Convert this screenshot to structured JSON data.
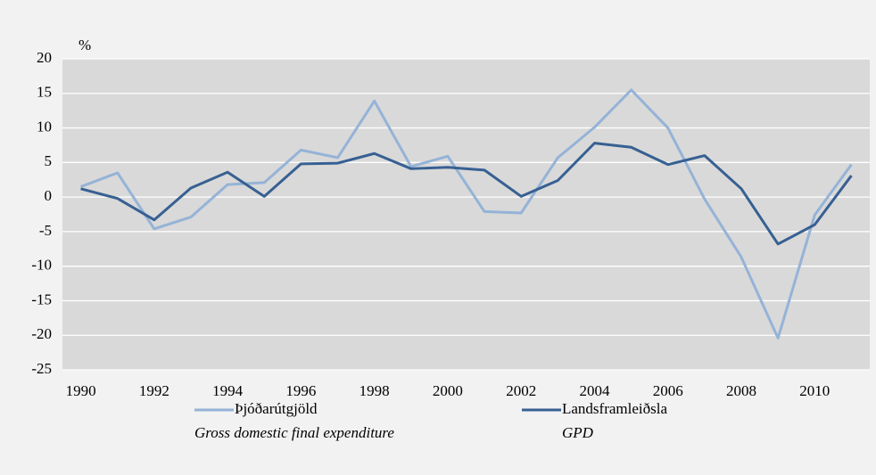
{
  "chart_data": {
    "type": "line",
    "y_unit": "%",
    "categories": [
      "1990",
      null,
      "1992",
      null,
      "1994",
      null,
      "1996",
      null,
      "1998",
      null,
      "2000",
      null,
      "2002",
      null,
      "2004",
      null,
      "2006",
      null,
      "2008",
      null,
      "2010",
      null
    ],
    "series": [
      {
        "name": "Þjóðarútgjöld",
        "description": "Gross domestic final expenditure",
        "color": "#95b3d7",
        "values": [
          1.5,
          3.5,
          -4.6,
          -2.9,
          1.8,
          2.1,
          6.8,
          5.7,
          13.9,
          4.4,
          5.9,
          -2.1,
          -2.3,
          5.7,
          10.1,
          15.5,
          10.0,
          -0.3,
          -8.7,
          -20.4,
          -2.6,
          4.7
        ]
      },
      {
        "name": "Landsframleiðsla",
        "description": "GPD",
        "color": "#376092",
        "values": [
          1.2,
          -0.2,
          -3.3,
          1.3,
          3.6,
          0.1,
          4.8,
          4.9,
          6.3,
          4.1,
          4.3,
          3.9,
          0.1,
          2.4,
          7.8,
          7.2,
          4.7,
          6.0,
          1.2,
          -6.8,
          -4.0,
          3.1
        ]
      }
    ],
    "ylim": [
      -25,
      20
    ],
    "yticks": [
      -25,
      -20,
      -15,
      -10,
      -5,
      0,
      5,
      10,
      15,
      20
    ],
    "grid": true
  }
}
